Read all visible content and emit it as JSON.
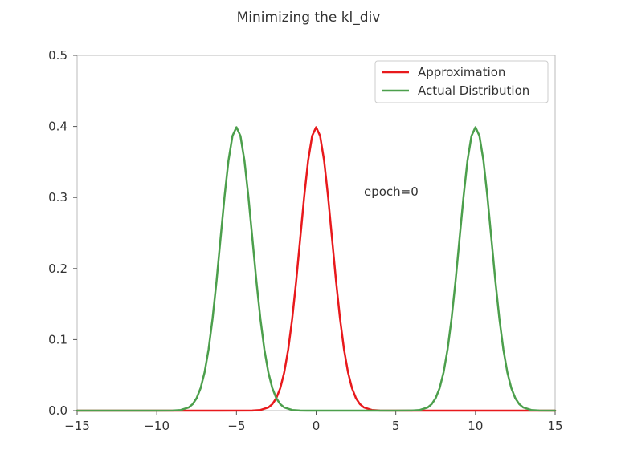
{
  "chart_data": {
    "type": "line",
    "title": "Minimizing the kl_div",
    "xlabel": "",
    "ylabel": "",
    "xlim": [
      -15,
      15
    ],
    "ylim": [
      0,
      0.5
    ],
    "xticks": [
      -15,
      -10,
      -5,
      0,
      5,
      10,
      15
    ],
    "xtick_labels": [
      "−15",
      "−10",
      "−5",
      "0",
      "5",
      "10",
      "15"
    ],
    "yticks": [
      0.0,
      0.1,
      0.2,
      0.3,
      0.4,
      0.5
    ],
    "ytick_labels": [
      "0.0",
      "0.1",
      "0.2",
      "0.3",
      "0.4",
      "0.5"
    ],
    "grid": false,
    "legend_position": "top-right",
    "annotation": {
      "text": "epoch=0",
      "x": 3.0,
      "y": 0.3
    },
    "series": [
      {
        "name": "Approximation",
        "color": "#e8191c",
        "x": [
          -15,
          -12,
          -10,
          -8,
          -6,
          -4,
          -3.5,
          -3,
          -2.75,
          -2.5,
          -2.25,
          -2,
          -1.75,
          -1.5,
          -1.25,
          -1,
          -0.75,
          -0.5,
          -0.25,
          0,
          0.25,
          0.5,
          0.75,
          1,
          1.25,
          1.5,
          1.75,
          2,
          2.25,
          2.5,
          2.75,
          3,
          3.5,
          4,
          6,
          8,
          10,
          12,
          15
        ],
        "y": [
          0,
          0,
          0,
          0,
          0,
          0.0001,
          0.0009,
          0.0044,
          0.0091,
          0.0175,
          0.0317,
          0.054,
          0.0863,
          0.1295,
          0.1826,
          0.242,
          0.3011,
          0.3521,
          0.3867,
          0.3989,
          0.3867,
          0.3521,
          0.3011,
          0.242,
          0.1826,
          0.1295,
          0.0863,
          0.054,
          0.0317,
          0.0175,
          0.0091,
          0.0044,
          0.0009,
          0.0001,
          0,
          0,
          0,
          0,
          0
        ]
      },
      {
        "name": "Actual Distribution",
        "color": "#4c9f4c",
        "x": [
          -15,
          -10,
          -9,
          -8.5,
          -8,
          -7.75,
          -7.5,
          -7.25,
          -7,
          -6.75,
          -6.5,
          -6.25,
          -6,
          -5.75,
          -5.5,
          -5.25,
          -5,
          -4.75,
          -4.5,
          -4.25,
          -4,
          -3.75,
          -3.5,
          -3.25,
          -3,
          -2.75,
          -2.5,
          -2.25,
          -2,
          -1.5,
          -1,
          0,
          2,
          5,
          6,
          6.5,
          7,
          7.25,
          7.5,
          7.75,
          8,
          8.25,
          8.5,
          8.75,
          9,
          9.25,
          9.5,
          9.75,
          10,
          10.25,
          10.5,
          10.75,
          11,
          11.25,
          11.5,
          11.75,
          12,
          12.25,
          12.5,
          12.75,
          13,
          13.5,
          14,
          15
        ],
        "y": [
          0,
          0,
          0.0001,
          0.0009,
          0.0044,
          0.0091,
          0.0175,
          0.0317,
          0.054,
          0.0863,
          0.1295,
          0.1826,
          0.242,
          0.3011,
          0.3521,
          0.3867,
          0.3989,
          0.3867,
          0.3521,
          0.3011,
          0.242,
          0.1826,
          0.1295,
          0.0863,
          0.054,
          0.0317,
          0.0175,
          0.0091,
          0.0044,
          0.0009,
          0.0001,
          0,
          0,
          0,
          0.0001,
          0.0009,
          0.0044,
          0.0091,
          0.0175,
          0.0317,
          0.054,
          0.0863,
          0.1295,
          0.1826,
          0.242,
          0.3011,
          0.3521,
          0.3867,
          0.3989,
          0.3867,
          0.3521,
          0.3011,
          0.242,
          0.1826,
          0.1295,
          0.0863,
          0.054,
          0.0317,
          0.0175,
          0.0091,
          0.0044,
          0.0009,
          0.0001,
          0
        ]
      }
    ]
  }
}
